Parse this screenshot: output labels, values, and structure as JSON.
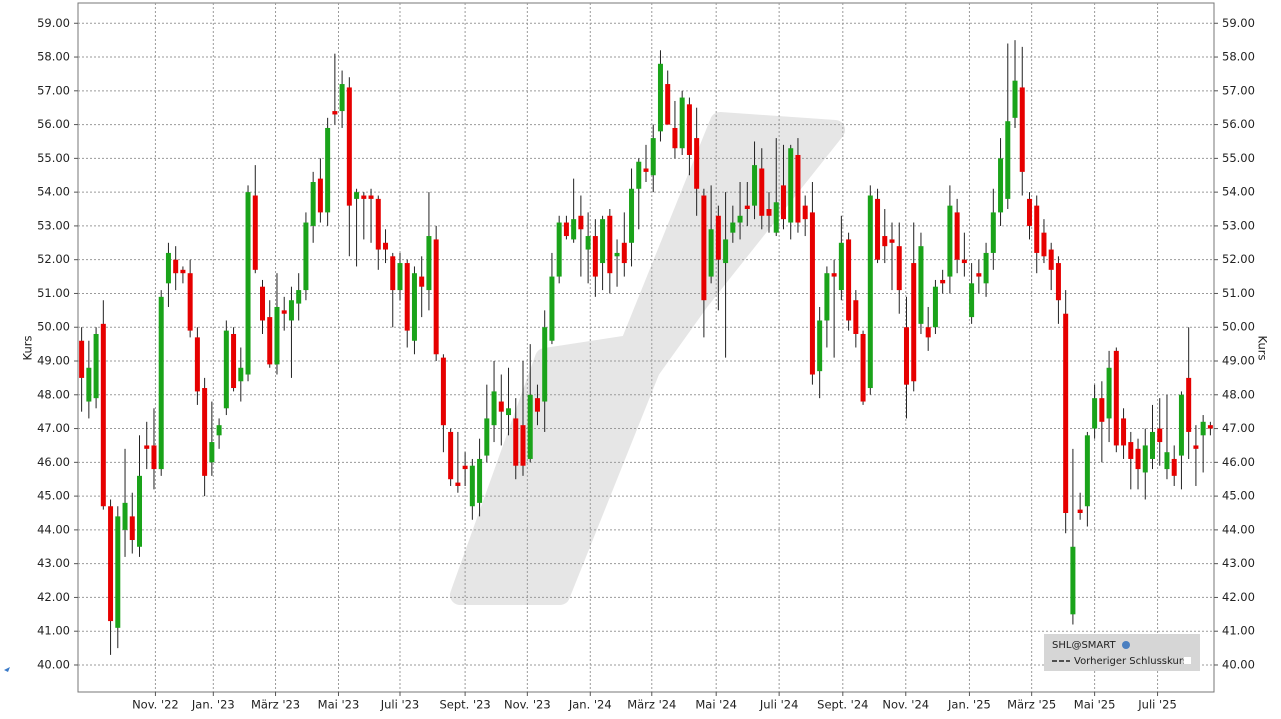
{
  "chart_data": {
    "type": "candlestick",
    "ylabel": "Kurs",
    "legend": {
      "symbol": "SHL@SMART",
      "previous_close": "Vorheriger Schlusskurs"
    },
    "up_color": "#1aa31a",
    "down_color": "#e60000",
    "grid": true,
    "xlim": [
      -0.5,
      156.5
    ],
    "ylim": [
      39.2,
      59.6
    ],
    "xticks": [
      {
        "value": 10.2,
        "label": "Nov. '22"
      },
      {
        "value": 18.2,
        "label": "Jan. '23"
      },
      {
        "value": 26.8,
        "label": "März '23"
      },
      {
        "value": 35.5,
        "label": "Mai '23"
      },
      {
        "value": 44,
        "label": "Juli '23"
      },
      {
        "value": 53,
        "label": "Sept. '23"
      },
      {
        "value": 61.6,
        "label": "Nov. '23"
      },
      {
        "value": 70.3,
        "label": "Jan. '24"
      },
      {
        "value": 78.8,
        "label": "März '24"
      },
      {
        "value": 87.7,
        "label": "Mai '24"
      },
      {
        "value": 96.4,
        "label": "Juli '24"
      },
      {
        "value": 105.2,
        "label": "Sept. '24"
      },
      {
        "value": 113.9,
        "label": "Nov. '24"
      },
      {
        "value": 122.7,
        "label": "Jan. '25"
      },
      {
        "value": 131.3,
        "label": "März '25"
      },
      {
        "value": 140,
        "label": "Mai '25"
      },
      {
        "value": 148.7,
        "label": "Juli '25"
      }
    ],
    "yticks": [
      {
        "value": 40,
        "label": "40.00"
      },
      {
        "value": 41,
        "label": "41.00"
      },
      {
        "value": 42,
        "label": "42.00"
      },
      {
        "value": 43,
        "label": "43.00"
      },
      {
        "value": 44,
        "label": "44.00"
      },
      {
        "value": 45,
        "label": "45.00"
      },
      {
        "value": 46,
        "label": "46.00"
      },
      {
        "value": 47,
        "label": "47.00"
      },
      {
        "value": 48,
        "label": "48.00"
      },
      {
        "value": 49,
        "label": "49.00"
      },
      {
        "value": 50,
        "label": "50.00"
      },
      {
        "value": 51,
        "label": "51.00"
      },
      {
        "value": 52,
        "label": "52.00"
      },
      {
        "value": 53,
        "label": "53.00"
      },
      {
        "value": 54,
        "label": "54.00"
      },
      {
        "value": 55,
        "label": "55.00"
      },
      {
        "value": 56,
        "label": "56.00"
      },
      {
        "value": 57,
        "label": "57.00"
      },
      {
        "value": 58,
        "label": "58.00"
      },
      {
        "value": 59,
        "label": "59.00"
      }
    ],
    "open": [
      49.6,
      47.8,
      47.9,
      50.1,
      44.7,
      41.1,
      44,
      44.4,
      43.5,
      46.5,
      46.5,
      45.8,
      51.3,
      52,
      51.7,
      51.6,
      49.7,
      48.2,
      46,
      46.8,
      47.6,
      49.8,
      48.4,
      48.6,
      53.9,
      51.2,
      50.3,
      48.9,
      50.5,
      50.2,
      50.7,
      51.1,
      53,
      54.4,
      53.4,
      56.4,
      56.4,
      57.1,
      53.8,
      53.9,
      53.9,
      53.8,
      52.5,
      52.1,
      51.1,
      51.9,
      49.6,
      51.5,
      51.1,
      52.6,
      49.1,
      46.9,
      45.4,
      45.9,
      44.7,
      44.8,
      46.2,
      47.1,
      47.8,
      47.4,
      47.3,
      47.1,
      46.1,
      47.9,
      47.8,
      49.6,
      51.5,
      53.1,
      52.6,
      53.3,
      52.3,
      52.7,
      51.9,
      53.3,
      52.1,
      52.5,
      52.5,
      54.1,
      54.7,
      54.5,
      55.8,
      57.2,
      55.9,
      55.3,
      56.6,
      55.6,
      53.9,
      51.5,
      53.3,
      51.9,
      52.8,
      53.1,
      53.6,
      53.6,
      54.7,
      53.5,
      52.8,
      54.2,
      53.1,
      55.1,
      53.6,
      53.4,
      48.7,
      50.2,
      51.6,
      51.1,
      52.6,
      50.8,
      49.8,
      48.2,
      53.8,
      52.7,
      52.6,
      52.4,
      50,
      51.9,
      50.1,
      50,
      50,
      51.4,
      51.5,
      53.4,
      52,
      50.3,
      51.6,
      51.3,
      52.2,
      53.4,
      53.8,
      56.2,
      57.1,
      53.8,
      53.6,
      52.8,
      52.3,
      51.9,
      50.4,
      41.5,
      44.6,
      44.7,
      47,
      47.9,
      47.3,
      49.3,
      47.3,
      46.6,
      46.4,
      45.7,
      46.1,
      47,
      45.8,
      46.1,
      46.2,
      48.5,
      46.5,
      46.8,
      47.1
    ],
    "high": [
      50,
      49.6,
      50,
      50.8,
      44.9,
      44.7,
      46.4,
      45.1,
      46.8,
      47.2,
      47.6,
      51.1,
      52.5,
      52.4,
      51.8,
      52,
      50,
      48.5,
      47.8,
      47.3,
      50.2,
      50,
      49.4,
      54.2,
      54.8,
      51.4,
      50.8,
      51.6,
      50.9,
      51.2,
      51.6,
      53.4,
      54.6,
      55,
      56.2,
      58.1,
      57.6,
      57.4,
      54.1,
      54,
      54.1,
      53.9,
      52.9,
      52.2,
      52.2,
      52,
      51.8,
      52.1,
      54,
      53,
      49.2,
      47,
      46.9,
      46.3,
      46.1,
      46.7,
      48.3,
      49,
      48.6,
      48.8,
      47.9,
      49,
      49.5,
      48.3,
      50.5,
      52.2,
      53.3,
      53.3,
      54.4,
      53.9,
      53.4,
      53.2,
      53.3,
      53.5,
      52.6,
      53.4,
      54.7,
      55,
      55.4,
      56,
      58.2,
      57.6,
      56.7,
      57,
      56.8,
      56.5,
      54.1,
      54.2,
      53.6,
      54,
      53.6,
      54.3,
      54.3,
      55.5,
      55.3,
      54,
      55.6,
      55.4,
      55.4,
      55.6,
      53.9,
      54.3,
      50.6,
      51.8,
      52,
      53.3,
      52.8,
      51.1,
      49.9,
      54.2,
      54.1,
      53.5,
      53.1,
      53.1,
      50.9,
      53.1,
      52.8,
      50.6,
      51.4,
      51.7,
      54.2,
      53.8,
      52.8,
      51.9,
      52,
      52.5,
      54.1,
      55.6,
      58.4,
      58.5,
      58.3,
      54,
      53.9,
      53.2,
      52.5,
      52.1,
      51.1,
      46.4,
      45.1,
      46.9,
      48.3,
      48.4,
      49.3,
      49.4,
      47.6,
      46.9,
      46.7,
      47,
      47.7,
      47.9,
      48,
      46.5,
      48.1,
      50,
      47.1,
      47.4,
      47.2
    ],
    "low": [
      47.5,
      47.3,
      47.6,
      44.6,
      40.3,
      40.5,
      43.2,
      43.3,
      43.2,
      45.8,
      45.2,
      45.6,
      50.6,
      51.1,
      51.3,
      49.7,
      47.7,
      45,
      45.6,
      46.4,
      47.4,
      48.1,
      47.8,
      48.4,
      51.6,
      49.8,
      48.8,
      48.6,
      49.9,
      48.5,
      50.2,
      50.8,
      52.5,
      53.1,
      53,
      56,
      55.9,
      52.1,
      51.8,
      52.6,
      52.5,
      51.7,
      51.9,
      50,
      50.8,
      49.4,
      49.2,
      50.3,
      50.5,
      49,
      46.3,
      45.3,
      45.1,
      45.3,
      44.3,
      44.4,
      46,
      46.6,
      46.5,
      46.8,
      45.5,
      45.6,
      46,
      47.1,
      46.9,
      49.5,
      51.3,
      52.6,
      52.5,
      51.5,
      51.3,
      50.9,
      51.1,
      51,
      51.2,
      51.5,
      51.8,
      52.9,
      54.3,
      54,
      55.5,
      56,
      55,
      55.1,
      54.5,
      53.3,
      49.7,
      51.3,
      50.5,
      49.1,
      52.5,
      52.6,
      53,
      53.2,
      52.9,
      52.8,
      52.7,
      52.9,
      52.6,
      52.8,
      52.7,
      48.3,
      47.9,
      49.4,
      49.1,
      50.8,
      49.9,
      49.4,
      47.7,
      48,
      51.9,
      51.9,
      51.1,
      50.4,
      47.3,
      48.1,
      49.8,
      49.3,
      49.8,
      51,
      51,
      51.6,
      51.5,
      50.1,
      51,
      50.9,
      51.7,
      53,
      53.5,
      55.9,
      53.9,
      52.6,
      51.6,
      51.9,
      51.1,
      50.1,
      43.9,
      41.2,
      44.3,
      44.1,
      46.7,
      46,
      46.6,
      46.3,
      46.1,
      45.2,
      45.2,
      44.9,
      45.8,
      45.9,
      45.5,
      45.3,
      45.2,
      46.1,
      45.3,
      45.7,
      46.8
    ],
    "close": [
      48.5,
      48.8,
      49.8,
      44.7,
      41.3,
      44.4,
      44.8,
      43.7,
      45.6,
      46.4,
      45.8,
      50.9,
      52.2,
      51.6,
      51.6,
      49.9,
      48.1,
      45.6,
      46.6,
      47.1,
      49.9,
      48.2,
      48.8,
      54,
      51.7,
      50.2,
      48.9,
      50.6,
      50.4,
      50.8,
      51.1,
      53.1,
      54.3,
      53.4,
      55.9,
      56.3,
      57.2,
      53.6,
      54,
      53.8,
      53.8,
      52.3,
      52.3,
      51.1,
      51.9,
      49.9,
      51.6,
      51.2,
      52.7,
      49.2,
      47.1,
      45.5,
      45.3,
      45.8,
      45.9,
      46.1,
      47.3,
      48.1,
      47.5,
      47.6,
      45.9,
      45.9,
      48,
      47.5,
      50,
      51.5,
      53.1,
      52.7,
      53.2,
      52.9,
      52.7,
      51.5,
      53.2,
      51.6,
      52.2,
      51.9,
      54.1,
      54.9,
      54.6,
      55.6,
      57.8,
      56,
      55.3,
      56.8,
      55.1,
      54.1,
      50.8,
      52.9,
      52,
      52.6,
      53.1,
      53.3,
      53.5,
      54.8,
      53.3,
      53.3,
      53.7,
      53.2,
      55.3,
      53.1,
      53.2,
      48.6,
      50.2,
      51.6,
      51.5,
      52.5,
      50.2,
      49.8,
      47.8,
      53.9,
      52,
      52.4,
      52.5,
      51.1,
      48.3,
      48.4,
      52.4,
      49.7,
      51.2,
      51.3,
      53.6,
      52,
      51.9,
      51.3,
      51.5,
      52.2,
      53.4,
      55,
      56.1,
      57.3,
      54.6,
      53,
      52.2,
      52.1,
      51.7,
      50.8,
      44.5,
      43.5,
      44.5,
      46.8,
      47.9,
      47.2,
      48.8,
      46.5,
      46.5,
      46.1,
      45.8,
      46.5,
      46.9,
      46.6,
      46.3,
      45.6,
      48,
      46.9,
      46.4,
      47.2,
      47
    ]
  }
}
